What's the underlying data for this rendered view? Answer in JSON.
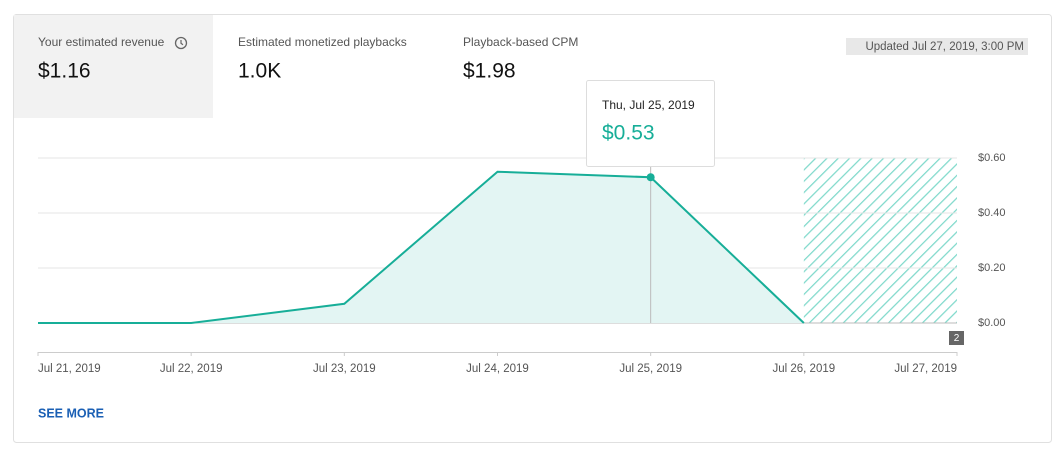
{
  "metrics": [
    {
      "label": "Your estimated revenue",
      "value": "$1.16"
    },
    {
      "label": "Estimated monetized playbacks",
      "value": "1.0K"
    },
    {
      "label": "Playback-based CPM",
      "value": "$1.98"
    }
  ],
  "updated": "Updated Jul 27, 2019, 3:00 PM",
  "tooltip": {
    "title": "Thu, Jul 25, 2019",
    "value": "$0.53"
  },
  "badge": "2",
  "see_more": "SEE MORE",
  "chart_data": {
    "type": "area",
    "x": [
      "Jul 21, 2019",
      "Jul 22, 2019",
      "Jul 23, 2019",
      "Jul 24, 2019",
      "Jul 25, 2019",
      "Jul 26, 2019",
      "Jul 27, 2019"
    ],
    "series": [
      {
        "name": "Your estimated revenue",
        "color": "#17ae98",
        "values": [
          0,
          0,
          0.07,
          0.55,
          0.53,
          0,
          null
        ]
      }
    ],
    "ylim": [
      0,
      0.6
    ],
    "yticks": [
      {
        "value": 0,
        "label": "$0.00"
      },
      {
        "value": 0.2,
        "label": "$0.20"
      },
      {
        "value": 0.4,
        "label": "$0.40"
      },
      {
        "value": 0.6,
        "label": "$0.60"
      }
    ],
    "grid": true
  }
}
